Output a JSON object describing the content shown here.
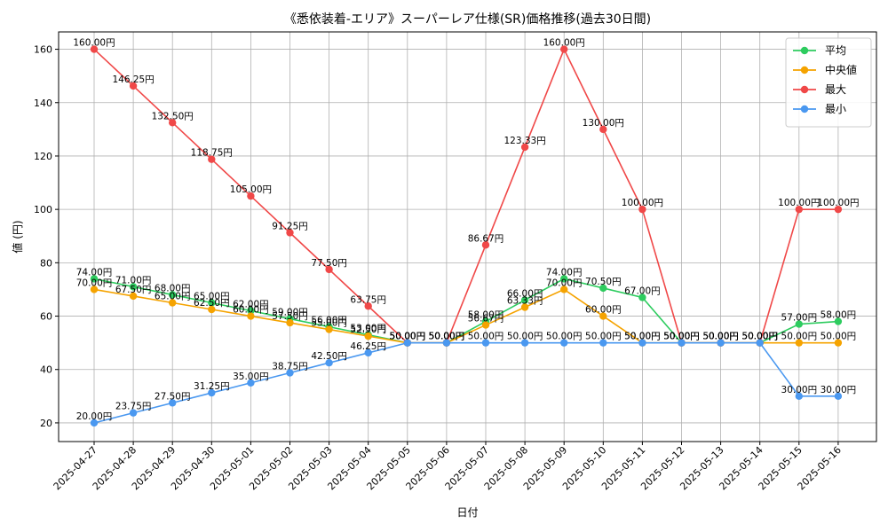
{
  "chart_data": {
    "type": "line",
    "title": "《悉依装着-エリア》スーパーレア仕様(SR)価格推移(過去30日間)",
    "xlabel": "日付",
    "ylabel": "値 (円)",
    "categories": [
      "2025-04-27",
      "2025-04-28",
      "2025-04-29",
      "2025-04-30",
      "2025-05-01",
      "2025-05-02",
      "2025-05-03",
      "2025-05-04",
      "2025-05-05",
      "2025-05-06",
      "2025-05-07",
      "2025-05-08",
      "2025-05-09",
      "2025-05-10",
      "2025-05-11",
      "2025-05-12",
      "2025-05-13",
      "2025-05-14",
      "2025-05-15",
      "2025-05-16"
    ],
    "yticks": [
      20,
      40,
      60,
      80,
      100,
      120,
      140,
      160
    ],
    "ylim": [
      13,
      166.5
    ],
    "grid": true,
    "legend_position": "top-right",
    "value_suffix": "円",
    "series": [
      {
        "name": "平均",
        "color": "#2ecc5f",
        "values": [
          74.0,
          71.0,
          68.0,
          65.0,
          62.0,
          59.0,
          56.0,
          53.0,
          50.0,
          50.0,
          58.0,
          66.0,
          74.0,
          70.5,
          67.0,
          50.0,
          50.0,
          50.0,
          57.0,
          58.0
        ]
      },
      {
        "name": "中央値",
        "color": "#f5a300",
        "values": [
          70.0,
          67.5,
          65.0,
          62.5,
          60.0,
          57.5,
          55.0,
          52.5,
          50.0,
          50.0,
          56.67,
          63.33,
          70.0,
          60.0,
          50.0,
          50.0,
          50.0,
          50.0,
          50.0,
          50.0
        ]
      },
      {
        "name": "最大",
        "color": "#f04848",
        "values": [
          160.0,
          146.25,
          132.5,
          118.75,
          105.0,
          91.25,
          77.5,
          63.75,
          50.0,
          50.0,
          86.67,
          123.33,
          160.0,
          130.0,
          100.0,
          50.0,
          50.0,
          50.0,
          100.0,
          100.0
        ]
      },
      {
        "name": "最小",
        "color": "#4a98f0",
        "values": [
          20.0,
          23.75,
          27.5,
          31.25,
          35.0,
          38.75,
          42.5,
          46.25,
          50.0,
          50.0,
          50.0,
          50.0,
          50.0,
          50.0,
          50.0,
          50.0,
          50.0,
          50.0,
          30.0,
          30.0
        ]
      }
    ]
  }
}
